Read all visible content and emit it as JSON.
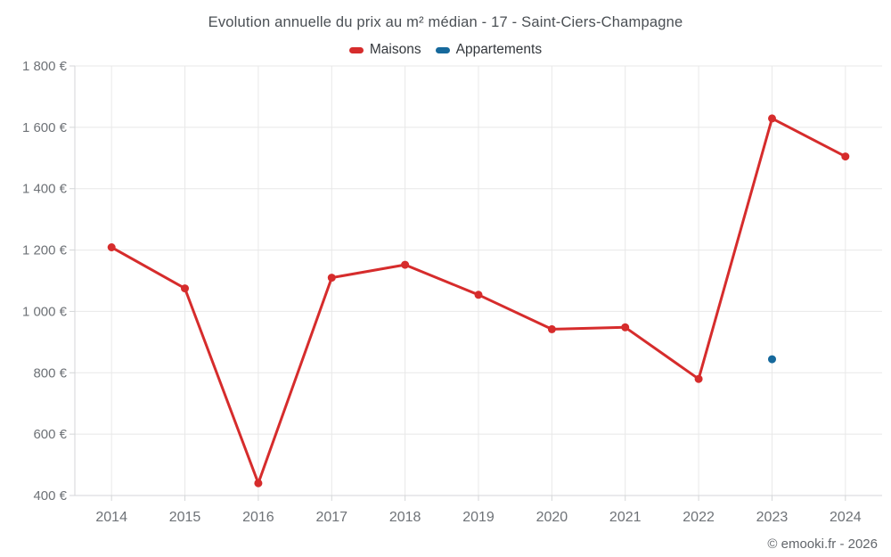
{
  "chart_data": {
    "type": "line",
    "title": "Evolution annuelle du prix au m² médian - 17 - Saint-Ciers-Champagne",
    "footer": "© emooki.fr - 2026",
    "categories": [
      "2014",
      "2015",
      "2016",
      "2017",
      "2018",
      "2019",
      "2020",
      "2021",
      "2022",
      "2023",
      "2024"
    ],
    "series": [
      {
        "name": "Maisons",
        "color": "#d62c2c",
        "values": [
          1209,
          1075,
          440,
          1110,
          1152,
          1054,
          942,
          948,
          780,
          1629,
          1505
        ]
      },
      {
        "name": "Appartements",
        "color": "#16699c",
        "values": [
          null,
          null,
          null,
          null,
          null,
          null,
          null,
          null,
          null,
          844,
          null
        ]
      }
    ],
    "ylim": [
      400,
      1800
    ],
    "y_tick_step": 200,
    "y_ticks": [
      {
        "value": 400,
        "label": "400 €"
      },
      {
        "value": 600,
        "label": "600 €"
      },
      {
        "value": 800,
        "label": "800 €"
      },
      {
        "value": 1000,
        "label": "1 000 €"
      },
      {
        "value": 1200,
        "label": "1 200 €"
      },
      {
        "value": 1400,
        "label": "1 400 €"
      },
      {
        "value": 1600,
        "label": "1 600 €"
      },
      {
        "value": 1800,
        "label": "1 800 €"
      }
    ],
    "grid": true,
    "legend_position": "top",
    "colors": {
      "grid_line": "#e8e8e8",
      "axis_line": "#d4d6d8",
      "tick_label": "#6e7277",
      "title_text": "#4a4f54",
      "legend_text": "#33373c",
      "footer_text": "#62666b",
      "background": "#ffffff"
    }
  }
}
